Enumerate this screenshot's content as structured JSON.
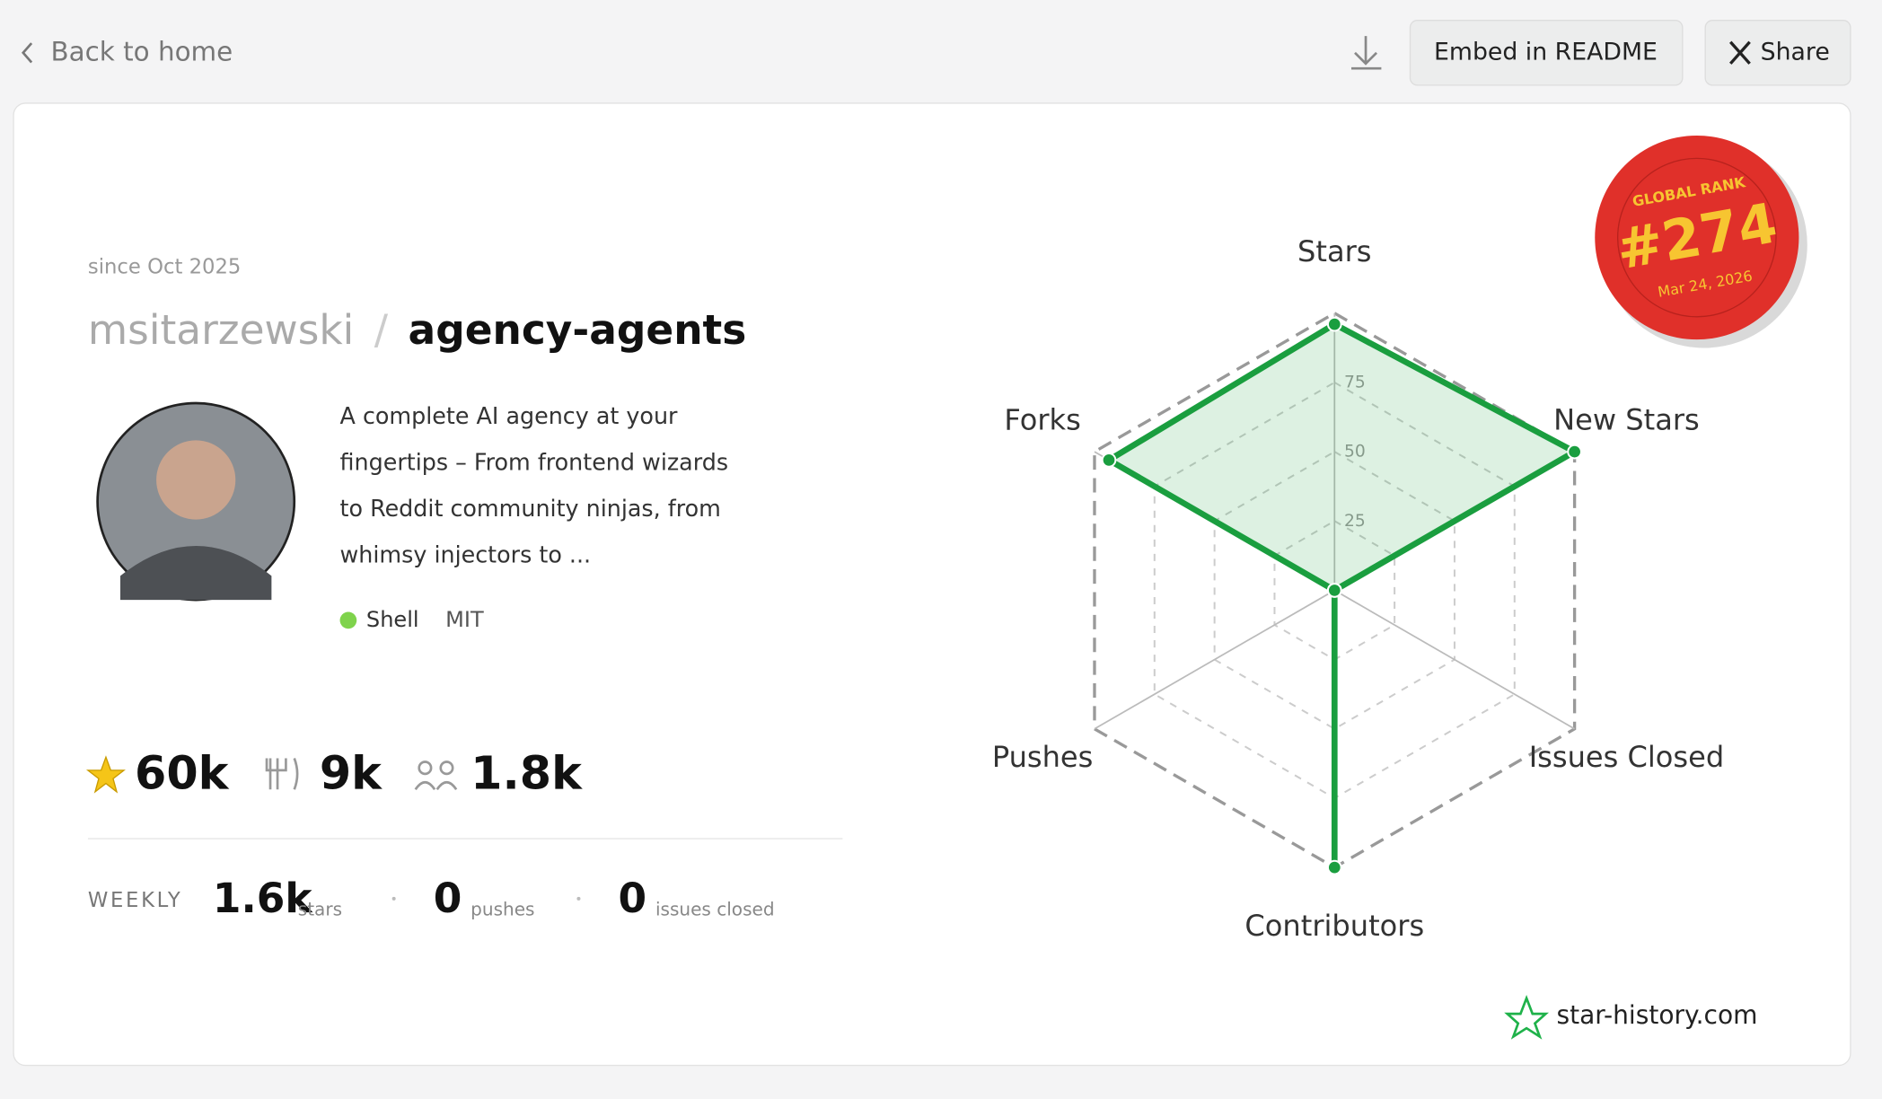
{
  "header": {
    "back": "Back to home",
    "embed": "Embed in README",
    "share": "Share"
  },
  "repo": {
    "since": "since Oct 2025",
    "owner": "msitarzewski",
    "separator": "/",
    "name": "agency-agents",
    "description_lines": [
      "A complete AI agency at your",
      "fingertips – From frontend wizards",
      "to Reddit community ninjas, from",
      "whimsy injectors to ..."
    ],
    "language": "Shell",
    "license": "MIT",
    "stars": "60k",
    "forks": "9k",
    "contributors": "1.8k",
    "weekly": {
      "label": "WEEKLY",
      "stars": "1.6k",
      "stars_unit": "stars",
      "pushes": "0",
      "pushes_unit": "pushes",
      "issues": "0",
      "issues_unit": "issues closed"
    }
  },
  "badge": {
    "title": "GLOBAL RANK",
    "rank": "#274",
    "date": "Mar 24, 2026"
  },
  "footer": {
    "brand": "star-history.com"
  },
  "chart_data": {
    "type": "radar",
    "categories": [
      "Stars",
      "New Stars",
      "Issues Closed",
      "Contributors",
      "Pushes",
      "Forks"
    ],
    "values": [
      96,
      100,
      0,
      100,
      0,
      94
    ],
    "color": "#1a9e3f",
    "rlim": [
      0,
      100
    ],
    "rticks": [
      25,
      50,
      75
    ]
  }
}
